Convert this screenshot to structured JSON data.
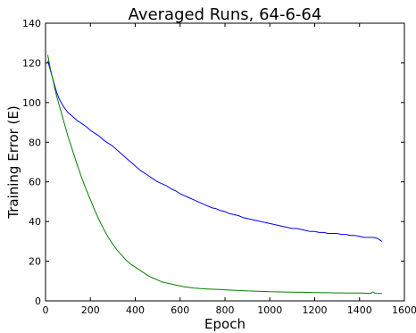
{
  "chart_data": {
    "type": "line",
    "title": "Averaged Runs, 64-6-64",
    "xlabel": "Epoch",
    "ylabel": "Training Error (E)",
    "xlim": [
      0,
      1600
    ],
    "ylim": [
      0,
      140
    ],
    "xticks": [
      0,
      200,
      400,
      600,
      800,
      1000,
      1200,
      1400,
      1600
    ],
    "yticks": [
      0,
      20,
      40,
      60,
      80,
      100,
      120,
      140
    ],
    "grid": false,
    "legend": "none",
    "series": [
      {
        "color": "#0000ff",
        "points": [
          [
            10,
            121
          ],
          [
            20,
            117
          ],
          [
            30,
            113
          ],
          [
            40,
            109
          ],
          [
            50,
            105
          ],
          [
            60,
            102
          ],
          [
            70,
            100
          ],
          [
            80,
            98
          ],
          [
            90,
            96.5
          ],
          [
            100,
            95
          ],
          [
            120,
            93
          ],
          [
            140,
            91
          ],
          [
            160,
            89.5
          ],
          [
            180,
            88
          ],
          [
            200,
            86
          ],
          [
            220,
            84.5
          ],
          [
            240,
            83
          ],
          [
            260,
            81
          ],
          [
            280,
            79.5
          ],
          [
            300,
            78
          ],
          [
            320,
            76
          ],
          [
            340,
            74
          ],
          [
            360,
            72
          ],
          [
            380,
            70
          ],
          [
            400,
            68
          ],
          [
            420,
            66
          ],
          [
            440,
            64.5
          ],
          [
            460,
            63
          ],
          [
            480,
            61.5
          ],
          [
            500,
            60
          ],
          [
            520,
            59
          ],
          [
            540,
            58
          ],
          [
            560,
            56.5
          ],
          [
            580,
            55.5
          ],
          [
            600,
            54
          ],
          [
            620,
            53
          ],
          [
            640,
            52
          ],
          [
            660,
            51
          ],
          [
            680,
            50
          ],
          [
            700,
            49
          ],
          [
            720,
            48
          ],
          [
            740,
            47
          ],
          [
            760,
            46.5
          ],
          [
            780,
            45.5
          ],
          [
            800,
            45
          ],
          [
            820,
            44
          ],
          [
            840,
            43.5
          ],
          [
            860,
            43
          ],
          [
            880,
            42
          ],
          [
            900,
            41.5
          ],
          [
            920,
            41
          ],
          [
            940,
            40.5
          ],
          [
            960,
            40
          ],
          [
            980,
            39.5
          ],
          [
            1000,
            39
          ],
          [
            1020,
            38.5
          ],
          [
            1040,
            38
          ],
          [
            1060,
            37.5
          ],
          [
            1080,
            37
          ],
          [
            1100,
            36.5
          ],
          [
            1120,
            36.5
          ],
          [
            1140,
            36
          ],
          [
            1160,
            35.5
          ],
          [
            1180,
            35
          ],
          [
            1200,
            35
          ],
          [
            1220,
            34.5
          ],
          [
            1240,
            34.5
          ],
          [
            1260,
            34
          ],
          [
            1280,
            34
          ],
          [
            1300,
            34
          ],
          [
            1320,
            33.5
          ],
          [
            1340,
            33.5
          ],
          [
            1360,
            33
          ],
          [
            1380,
            33
          ],
          [
            1400,
            32.5
          ],
          [
            1420,
            32
          ],
          [
            1440,
            32
          ],
          [
            1460,
            32
          ],
          [
            1480,
            31.5
          ],
          [
            1500,
            30
          ]
        ]
      },
      {
        "color": "#008000",
        "points": [
          [
            10,
            124
          ],
          [
            20,
            118
          ],
          [
            30,
            113
          ],
          [
            40,
            108
          ],
          [
            50,
            103
          ],
          [
            60,
            99
          ],
          [
            70,
            95
          ],
          [
            80,
            91
          ],
          [
            90,
            87
          ],
          [
            100,
            83
          ],
          [
            120,
            76
          ],
          [
            140,
            69
          ],
          [
            160,
            62.5
          ],
          [
            180,
            56.5
          ],
          [
            200,
            51
          ],
          [
            220,
            45.5
          ],
          [
            240,
            40.5
          ],
          [
            260,
            36
          ],
          [
            280,
            32
          ],
          [
            300,
            28.5
          ],
          [
            320,
            25.5
          ],
          [
            340,
            23
          ],
          [
            360,
            20.5
          ],
          [
            380,
            18.5
          ],
          [
            400,
            17
          ],
          [
            420,
            15.5
          ],
          [
            440,
            14
          ],
          [
            460,
            12.5
          ],
          [
            480,
            11.5
          ],
          [
            500,
            10.5
          ],
          [
            520,
            9.5
          ],
          [
            540,
            9
          ],
          [
            560,
            8.5
          ],
          [
            580,
            8
          ],
          [
            600,
            7.5
          ],
          [
            620,
            7
          ],
          [
            640,
            6.8
          ],
          [
            660,
            6.5
          ],
          [
            680,
            6.3
          ],
          [
            700,
            6.1
          ],
          [
            720,
            6
          ],
          [
            740,
            5.9
          ],
          [
            760,
            5.8
          ],
          [
            780,
            5.7
          ],
          [
            800,
            5.6
          ],
          [
            850,
            5.3
          ],
          [
            900,
            5
          ],
          [
            950,
            4.8
          ],
          [
            1000,
            4.6
          ],
          [
            1050,
            4.5
          ],
          [
            1100,
            4.4
          ],
          [
            1150,
            4.3
          ],
          [
            1200,
            4.2
          ],
          [
            1250,
            4.1
          ],
          [
            1300,
            4
          ],
          [
            1350,
            3.9
          ],
          [
            1400,
            3.9
          ],
          [
            1450,
            3.8
          ],
          [
            1460,
            4.5
          ],
          [
            1470,
            3.8
          ],
          [
            1500,
            3.7
          ]
        ]
      }
    ]
  }
}
